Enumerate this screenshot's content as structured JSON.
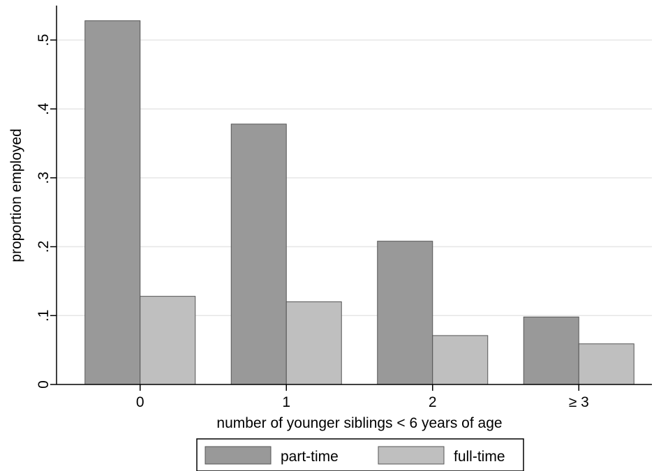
{
  "chart_data": {
    "type": "bar",
    "xlabel": "number of younger siblings < 6 years of age",
    "ylabel": "proportion employed",
    "categories": [
      "0",
      "1",
      "2",
      "≥ 3"
    ],
    "yticks": [
      {
        "value": 0,
        "label": "0"
      },
      {
        "value": 0.1,
        "label": ".1"
      },
      {
        "value": 0.2,
        "label": ".2"
      },
      {
        "value": 0.3,
        "label": ".3"
      },
      {
        "value": 0.4,
        "label": ".4"
      },
      {
        "value": 0.5,
        "label": ".5"
      }
    ],
    "ylim": [
      0,
      0.55
    ],
    "grid": true,
    "legend_position": "bottom",
    "series": [
      {
        "name": "part-time",
        "color": "#999999",
        "values": [
          0.528,
          0.378,
          0.208,
          0.098
        ]
      },
      {
        "name": "full-time",
        "color": "#bfbfbf",
        "values": [
          0.128,
          0.12,
          0.071,
          0.059
        ]
      }
    ]
  }
}
